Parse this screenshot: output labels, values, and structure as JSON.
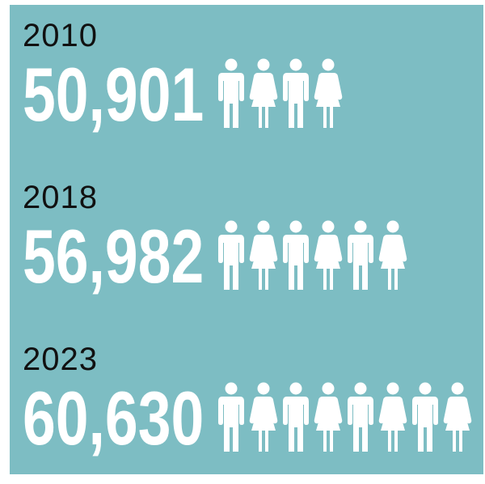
{
  "colors": {
    "panel": "#7dbdc3",
    "value": "#ffffff",
    "year": "#111111",
    "icon": "#ffffff"
  },
  "chart_data": {
    "type": "table",
    "categories": [
      "2010",
      "2018",
      "2023"
    ],
    "values": [
      50901,
      56982,
      60630
    ],
    "value_labels": [
      "50,901",
      "56,982",
      "60,630"
    ],
    "icons": [
      [
        "man-icon",
        "woman-icon",
        "man-icon",
        "woman-icon"
      ],
      [
        "man-icon",
        "woman-icon",
        "man-icon",
        "woman-icon",
        "man-icon",
        "woman-icon"
      ],
      [
        "man-icon",
        "woman-icon",
        "man-icon",
        "woman-icon",
        "man-icon",
        "woman-icon",
        "man-icon",
        "woman-icon"
      ]
    ]
  }
}
